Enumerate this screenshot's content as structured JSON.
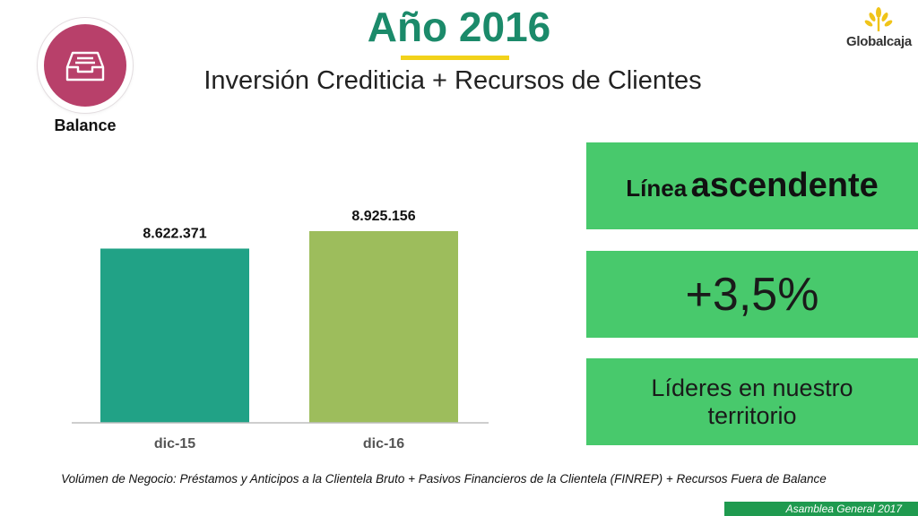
{
  "header": {
    "title": "Año 2016",
    "subtitle": "Inversión Crediticia + Recursos de Clientes"
  },
  "badge": {
    "label": "Balance",
    "icon": "inbox-tray-icon"
  },
  "logo": {
    "text": "Globalcaja"
  },
  "chart_data": {
    "type": "bar",
    "categories": [
      "dic-15",
      "dic-16"
    ],
    "values": [
      8622371,
      8925156
    ],
    "value_labels": [
      "8.622.371",
      "8.925.156"
    ],
    "colors": [
      "#21a286",
      "#9dbd5c"
    ],
    "grid": false
  },
  "panels": {
    "trend_small": "Línea",
    "trend_big": "ascendente",
    "growth": "+3,5%",
    "leaders": "Líderes en nuestro territorio"
  },
  "footnote": "Volúmen de Negocio: Préstamos y Anticipos a la Clientela Bruto + Pasivos Financieros de la Clientela (FINREP) + Recursos Fuera de Balance",
  "footer": {
    "text": "Asamblea General 2017"
  },
  "colors": {
    "title": "#1b8a6a",
    "accent_yellow": "#f2d21a",
    "badge": "#b8406a",
    "panel_green": "#48c96c",
    "footer_green": "#1f9a4f",
    "logo_yellow": "#f0c419"
  }
}
